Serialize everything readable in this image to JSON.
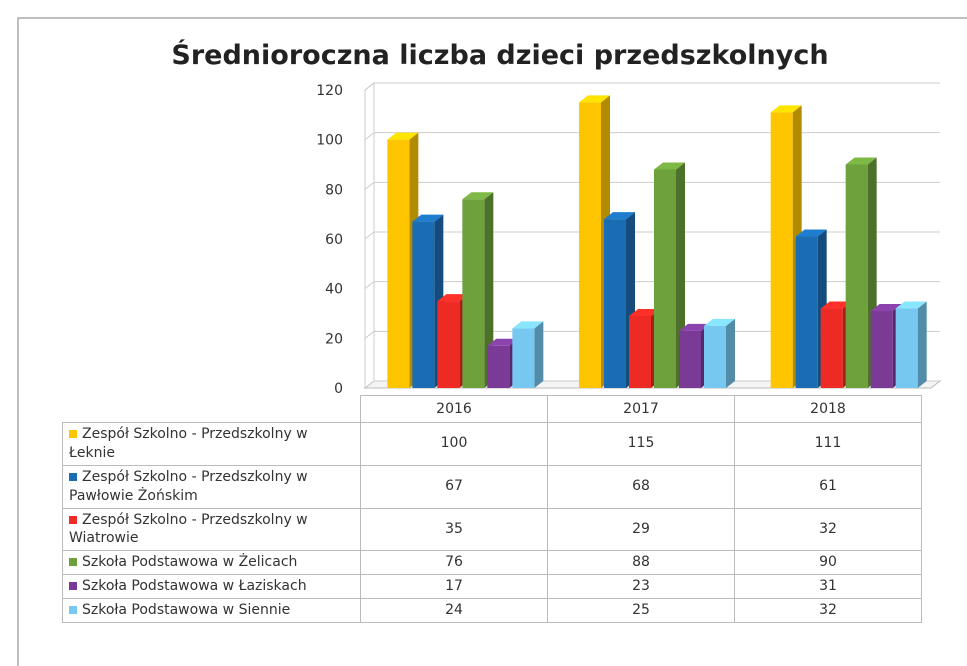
{
  "chart_data": {
    "type": "bar3d",
    "title": "Średnioroczna liczba dzieci przedszkolnych",
    "categories": [
      "2016",
      "2017",
      "2018"
    ],
    "series": [
      {
        "name": "Zespół Szkolno - Przedszkolny w Łeknie",
        "color": "#ffc600",
        "values": [
          100,
          115,
          111
        ]
      },
      {
        "name": "Zespół Szkolno - Przedszkolny w Pawłowie Żońskim",
        "color": "#1b6db3",
        "values": [
          67,
          68,
          61
        ]
      },
      {
        "name": "Zespół Szkolno - Przedszkolny w Wiatrowie",
        "color": "#ee2a24",
        "values": [
          35,
          29,
          32
        ]
      },
      {
        "name": "Szkoła Podstawowa w Żelicach",
        "color": "#6ea03c",
        "values": [
          76,
          88,
          90
        ]
      },
      {
        "name": "Szkoła Podstawowa w Łaziskach",
        "color": "#7b3a96",
        "values": [
          17,
          23,
          31
        ]
      },
      {
        "name": "Szkoła Podstawowa w Siennie",
        "color": "#76c8f0",
        "values": [
          24,
          25,
          32
        ]
      }
    ],
    "ylim": [
      0,
      120
    ],
    "yticks": [
      0,
      20,
      40,
      60,
      80,
      100,
      120
    ],
    "grid": true,
    "data_table": true
  }
}
